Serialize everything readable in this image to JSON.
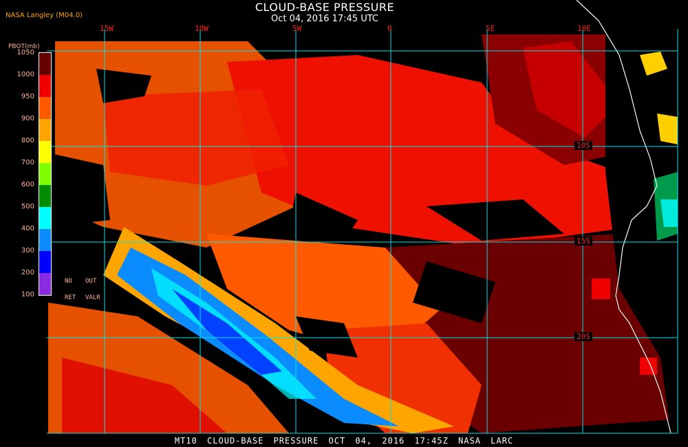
{
  "header": {
    "title": "CLOUD-BASE PRESSURE",
    "subtitle": "Oct 04, 2016 17:45 UTC",
    "credit": "NASA Langley (M04.0)"
  },
  "map": {
    "longitude_labels": [
      "15W",
      "10W",
      "5W",
      "0",
      "5E",
      "10E"
    ],
    "latitude_labels": [
      "10S",
      "15S",
      "20S"
    ],
    "grid_color": "#00e5ee",
    "coastline_color": "#ffffff"
  },
  "legend": {
    "label": "PBOT(mb)",
    "values": [
      "1050",
      "1000",
      "950",
      "900",
      "800",
      "700",
      "600",
      "500",
      "400",
      "300",
      "200",
      "100"
    ],
    "colors": [
      "#660000",
      "#f00000",
      "#ff5a00",
      "#ffa500",
      "#ffff00",
      "#80ff00",
      "#008c00",
      "#00ffff",
      "#0a8cff",
      "#0000ff",
      "#8a2be2"
    ],
    "no_ret": [
      "NO",
      "RET"
    ],
    "out_valr": [
      "OUT",
      "VALR"
    ]
  },
  "footer": "MT10 CLOUD-BASE PRESSURE OCT 04, 2016 17:45Z NASA LARC"
}
